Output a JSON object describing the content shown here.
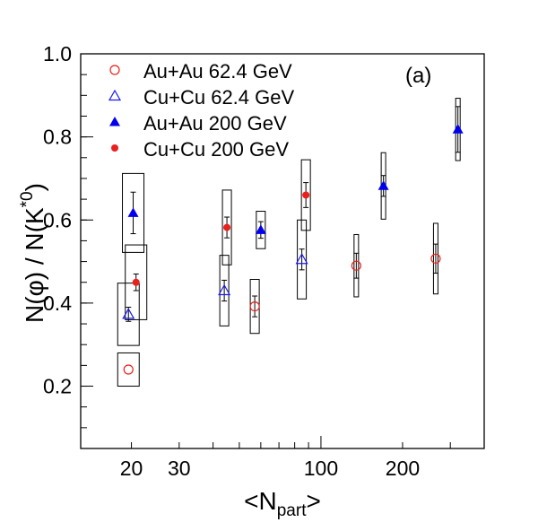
{
  "chart_data": {
    "type": "scatter",
    "xscale": "log",
    "xlim": [
      13,
      400
    ],
    "ylim": [
      0.05,
      1.0
    ],
    "grid": false,
    "panel_label": "(a)",
    "xlabel": {
      "main": "<N",
      "sub": "part",
      "end": ">"
    },
    "ylabel": {
      "main": "N(φ) / N(K",
      "sup": "*0",
      "end": ")"
    },
    "x_ticks": [
      {
        "value": 20,
        "label": "20"
      },
      {
        "value": 30,
        "label": "30"
      },
      {
        "value": 100,
        "label": "100"
      },
      {
        "value": 200,
        "label": "200"
      }
    ],
    "y_ticks": [
      {
        "value": 0.2,
        "label": "0.2"
      },
      {
        "value": 0.4,
        "label": "0.4"
      },
      {
        "value": 0.6,
        "label": "0.6"
      },
      {
        "value": 0.8,
        "label": "0.8"
      },
      {
        "value": 1.0,
        "label": "1.0"
      }
    ],
    "legend_position": "top-left",
    "series": [
      {
        "name": "Au+Au 62.4 GeV",
        "marker": "open-circle",
        "color": "#e8211d",
        "points": [
          {
            "x": 19.5,
            "y": 0.24,
            "err": 0.0,
            "sys": 0.04
          },
          {
            "x": 57.0,
            "y": 0.392,
            "err": 0.025,
            "sys": 0.065
          },
          {
            "x": 135.0,
            "y": 0.49,
            "err": 0.03,
            "sys": 0.075
          },
          {
            "x": 265.0,
            "y": 0.507,
            "err": 0.035,
            "sys": 0.085
          }
        ]
      },
      {
        "name": "Cu+Cu 62.4  GeV",
        "marker": "open-triangle",
        "color": "#1a1aee",
        "points": [
          {
            "x": 19.5,
            "y": 0.373,
            "err": 0.017,
            "sys": 0.075
          },
          {
            "x": 44.0,
            "y": 0.43,
            "err": 0.025,
            "sys": 0.085
          },
          {
            "x": 85.0,
            "y": 0.505,
            "err": 0.025,
            "sys": 0.095
          }
        ]
      },
      {
        "name": "Au+Au 200  GeV",
        "marker": "filled-triangle",
        "color": "#0000ee",
        "points": [
          {
            "x": 20.3,
            "y": 0.617,
            "err": 0.05,
            "sys": 0.095
          },
          {
            "x": 60.0,
            "y": 0.576,
            "err": 0.02,
            "sys": 0.045
          },
          {
            "x": 170.0,
            "y": 0.682,
            "err": 0.025,
            "sys": 0.08
          },
          {
            "x": 320.0,
            "y": 0.818,
            "err": 0.055,
            "sys": 0.075
          }
        ]
      },
      {
        "name": "Cu+Cu 200  GeV",
        "marker": "filled-circle",
        "color": "#e8211d",
        "points": [
          {
            "x": 20.8,
            "y": 0.45,
            "err": 0.02,
            "sys": 0.09
          },
          {
            "x": 45.0,
            "y": 0.582,
            "err": 0.025,
            "sys": 0.09
          },
          {
            "x": 88.0,
            "y": 0.66,
            "err": 0.03,
            "sys": 0.085
          }
        ]
      }
    ]
  }
}
